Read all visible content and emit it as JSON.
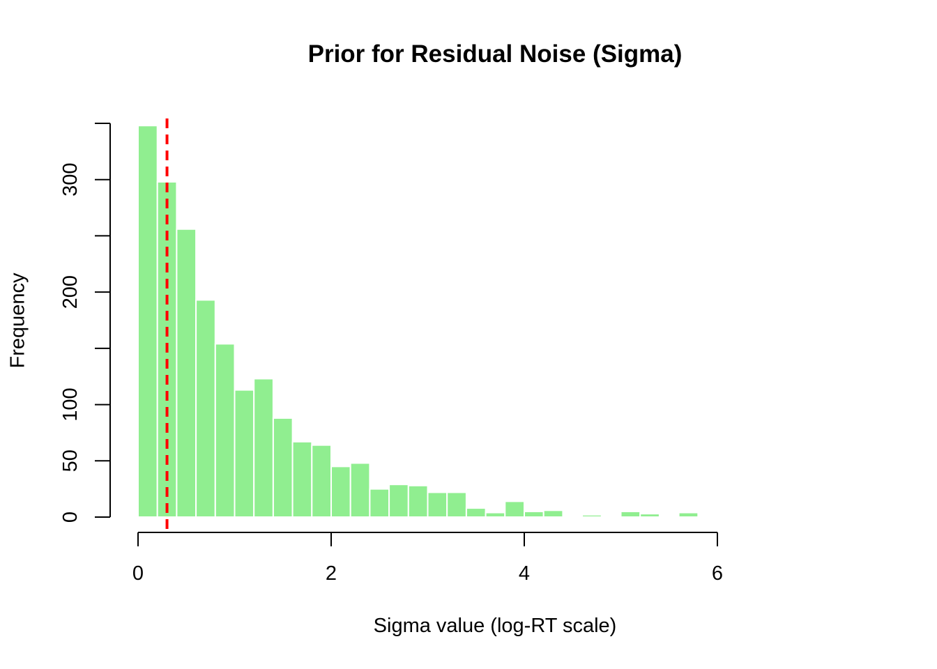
{
  "chart_data": {
    "type": "bar",
    "title": "Prior for Residual Noise (Sigma)",
    "xlabel": "Sigma value (log-RT scale)",
    "ylabel": "Frequency",
    "bin_width": 0.2,
    "bin_start": 0,
    "values": [
      348,
      298,
      256,
      193,
      154,
      113,
      123,
      88,
      67,
      64,
      45,
      48,
      25,
      29,
      28,
      22,
      22,
      8,
      4,
      14,
      5,
      6,
      0,
      2,
      0,
      5,
      3,
      0,
      4
    ],
    "xlim": [
      0,
      6
    ],
    "ylim": [
      0,
      350
    ],
    "x_ticks": [
      0,
      2,
      4,
      6
    ],
    "y_ticks": [
      0,
      50,
      100,
      150,
      200,
      250,
      300,
      350
    ],
    "y_tick_labels": [
      "0",
      "50",
      "100",
      "",
      "200",
      "",
      "300",
      ""
    ],
    "reference_line": {
      "x": 0.3,
      "color": "#ff0000",
      "style": "dashed"
    },
    "bar_color": "#90ee90",
    "bar_border": "#ffffff",
    "grid": false
  }
}
